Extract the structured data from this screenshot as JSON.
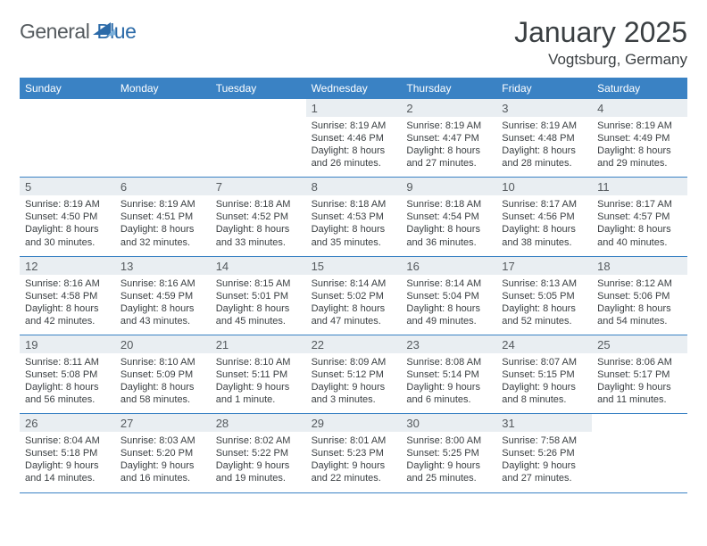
{
  "brand": {
    "word1": "General",
    "word2": "Blue"
  },
  "title": "January 2025",
  "location": "Vogtsburg, Germany",
  "colors": {
    "header_bg": "#3a82c4",
    "daynum_bg": "#e9eef2",
    "text": "#3a3f42",
    "logo_gray": "#555b5f",
    "logo_blue": "#2b6aa8",
    "border": "#3a82c4"
  },
  "weekdays": [
    "Sunday",
    "Monday",
    "Tuesday",
    "Wednesday",
    "Thursday",
    "Friday",
    "Saturday"
  ],
  "first_weekday_index": 3,
  "days": [
    {
      "n": 1,
      "sunrise": "8:19 AM",
      "sunset": "4:46 PM",
      "daylight": "8 hours and 26 minutes."
    },
    {
      "n": 2,
      "sunrise": "8:19 AM",
      "sunset": "4:47 PM",
      "daylight": "8 hours and 27 minutes."
    },
    {
      "n": 3,
      "sunrise": "8:19 AM",
      "sunset": "4:48 PM",
      "daylight": "8 hours and 28 minutes."
    },
    {
      "n": 4,
      "sunrise": "8:19 AM",
      "sunset": "4:49 PM",
      "daylight": "8 hours and 29 minutes."
    },
    {
      "n": 5,
      "sunrise": "8:19 AM",
      "sunset": "4:50 PM",
      "daylight": "8 hours and 30 minutes."
    },
    {
      "n": 6,
      "sunrise": "8:19 AM",
      "sunset": "4:51 PM",
      "daylight": "8 hours and 32 minutes."
    },
    {
      "n": 7,
      "sunrise": "8:18 AM",
      "sunset": "4:52 PM",
      "daylight": "8 hours and 33 minutes."
    },
    {
      "n": 8,
      "sunrise": "8:18 AM",
      "sunset": "4:53 PM",
      "daylight": "8 hours and 35 minutes."
    },
    {
      "n": 9,
      "sunrise": "8:18 AM",
      "sunset": "4:54 PM",
      "daylight": "8 hours and 36 minutes."
    },
    {
      "n": 10,
      "sunrise": "8:17 AM",
      "sunset": "4:56 PM",
      "daylight": "8 hours and 38 minutes."
    },
    {
      "n": 11,
      "sunrise": "8:17 AM",
      "sunset": "4:57 PM",
      "daylight": "8 hours and 40 minutes."
    },
    {
      "n": 12,
      "sunrise": "8:16 AM",
      "sunset": "4:58 PM",
      "daylight": "8 hours and 42 minutes."
    },
    {
      "n": 13,
      "sunrise": "8:16 AM",
      "sunset": "4:59 PM",
      "daylight": "8 hours and 43 minutes."
    },
    {
      "n": 14,
      "sunrise": "8:15 AM",
      "sunset": "5:01 PM",
      "daylight": "8 hours and 45 minutes."
    },
    {
      "n": 15,
      "sunrise": "8:14 AM",
      "sunset": "5:02 PM",
      "daylight": "8 hours and 47 minutes."
    },
    {
      "n": 16,
      "sunrise": "8:14 AM",
      "sunset": "5:04 PM",
      "daylight": "8 hours and 49 minutes."
    },
    {
      "n": 17,
      "sunrise": "8:13 AM",
      "sunset": "5:05 PM",
      "daylight": "8 hours and 52 minutes."
    },
    {
      "n": 18,
      "sunrise": "8:12 AM",
      "sunset": "5:06 PM",
      "daylight": "8 hours and 54 minutes."
    },
    {
      "n": 19,
      "sunrise": "8:11 AM",
      "sunset": "5:08 PM",
      "daylight": "8 hours and 56 minutes."
    },
    {
      "n": 20,
      "sunrise": "8:10 AM",
      "sunset": "5:09 PM",
      "daylight": "8 hours and 58 minutes."
    },
    {
      "n": 21,
      "sunrise": "8:10 AM",
      "sunset": "5:11 PM",
      "daylight": "9 hours and 1 minute."
    },
    {
      "n": 22,
      "sunrise": "8:09 AM",
      "sunset": "5:12 PM",
      "daylight": "9 hours and 3 minutes."
    },
    {
      "n": 23,
      "sunrise": "8:08 AM",
      "sunset": "5:14 PM",
      "daylight": "9 hours and 6 minutes."
    },
    {
      "n": 24,
      "sunrise": "8:07 AM",
      "sunset": "5:15 PM",
      "daylight": "9 hours and 8 minutes."
    },
    {
      "n": 25,
      "sunrise": "8:06 AM",
      "sunset": "5:17 PM",
      "daylight": "9 hours and 11 minutes."
    },
    {
      "n": 26,
      "sunrise": "8:04 AM",
      "sunset": "5:18 PM",
      "daylight": "9 hours and 14 minutes."
    },
    {
      "n": 27,
      "sunrise": "8:03 AM",
      "sunset": "5:20 PM",
      "daylight": "9 hours and 16 minutes."
    },
    {
      "n": 28,
      "sunrise": "8:02 AM",
      "sunset": "5:22 PM",
      "daylight": "9 hours and 19 minutes."
    },
    {
      "n": 29,
      "sunrise": "8:01 AM",
      "sunset": "5:23 PM",
      "daylight": "9 hours and 22 minutes."
    },
    {
      "n": 30,
      "sunrise": "8:00 AM",
      "sunset": "5:25 PM",
      "daylight": "9 hours and 25 minutes."
    },
    {
      "n": 31,
      "sunrise": "7:58 AM",
      "sunset": "5:26 PM",
      "daylight": "9 hours and 27 minutes."
    }
  ],
  "labels": {
    "sunrise": "Sunrise: ",
    "sunset": "Sunset: ",
    "daylight": "Daylight: "
  }
}
